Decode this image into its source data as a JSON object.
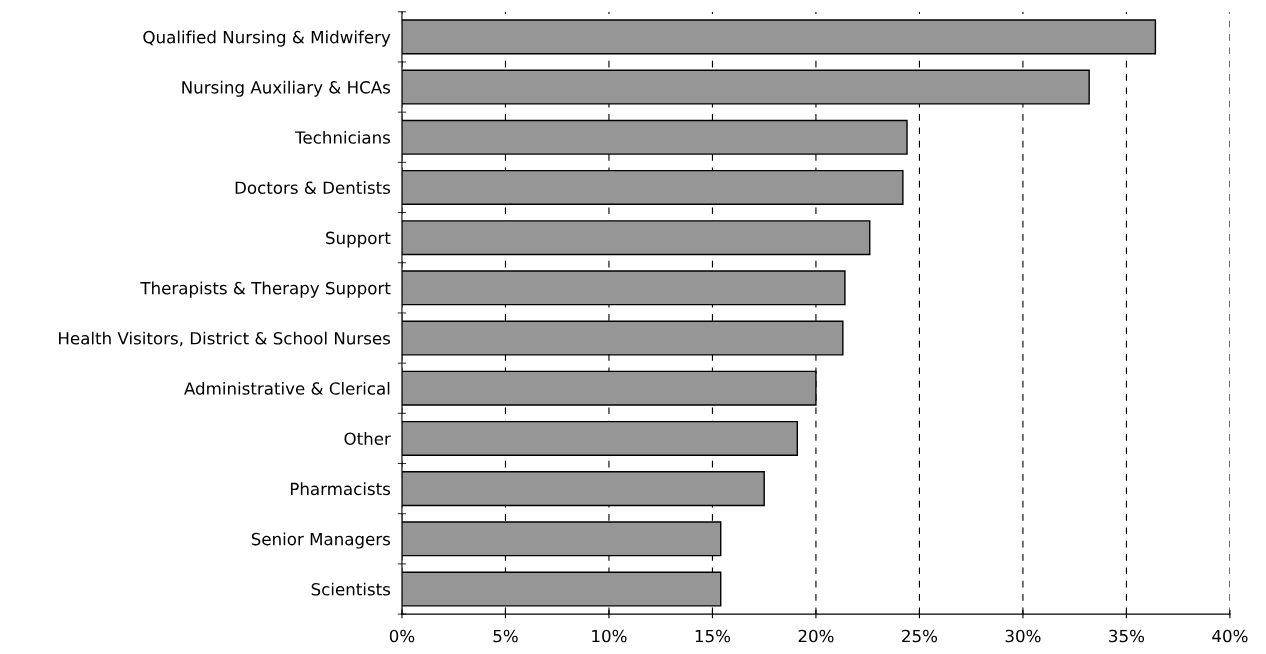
{
  "chart_data": {
    "type": "bar",
    "orientation": "horizontal",
    "categories": [
      "Qualified Nursing & Midwifery",
      "Nursing Auxiliary & HCAs",
      "Technicians",
      "Doctors & Dentists",
      "Support",
      "Therapists & Therapy Support",
      "Health Visitors, District & School Nurses",
      "Administrative & Clerical",
      "Other",
      "Pharmacists",
      "Senior Managers",
      "Scientists"
    ],
    "values": [
      36.4,
      33.2,
      24.4,
      24.2,
      22.6,
      21.4,
      21.3,
      20.0,
      19.1,
      17.5,
      15.4,
      15.4
    ],
    "color": "#969696",
    "xlim": [
      0,
      40
    ],
    "xticks": [
      {
        "value": 0,
        "label": "0%"
      },
      {
        "value": 5,
        "label": "5%"
      },
      {
        "value": 10,
        "label": "10%"
      },
      {
        "value": 15,
        "label": "15%"
      },
      {
        "value": 20,
        "label": "20%"
      },
      {
        "value": 25,
        "label": "25%"
      },
      {
        "value": 30,
        "label": "30%"
      },
      {
        "value": 35,
        "label": "35%"
      },
      {
        "value": 40,
        "label": "40%"
      }
    ],
    "grid": "x"
  }
}
